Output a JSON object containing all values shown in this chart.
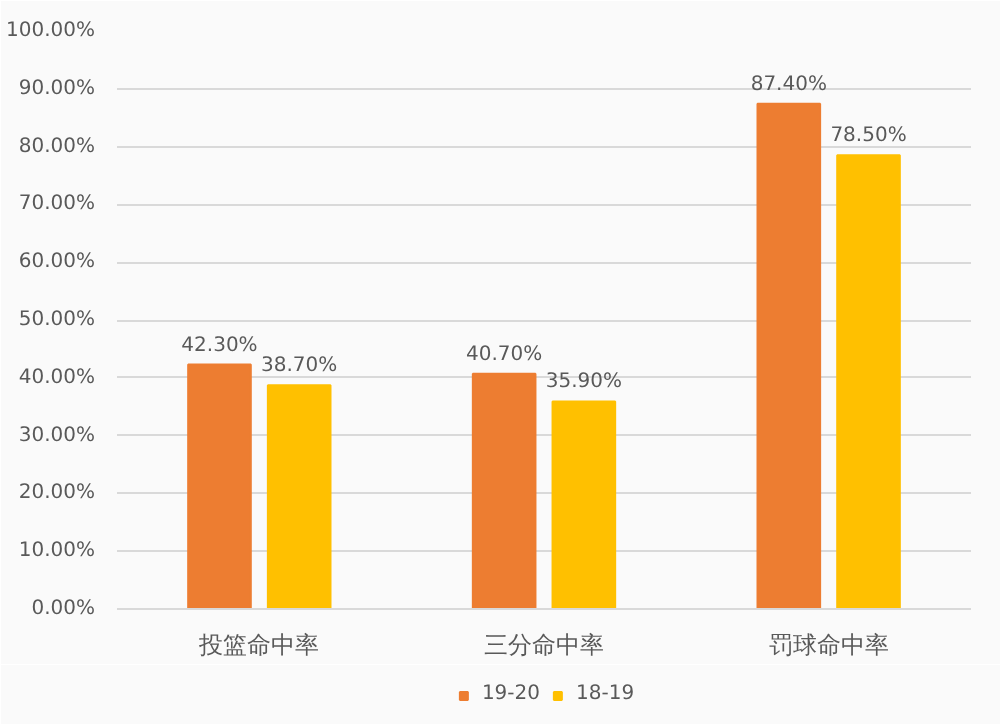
{
  "chart_data": {
    "type": "bar",
    "categories": [
      "投篮命中率",
      "三分命中率",
      "罚球命中率"
    ],
    "series": [
      {
        "name": "19-20",
        "color": "#ed7d31",
        "values": [
          42.3,
          40.7,
          87.4
        ],
        "value_labels": [
          "42.30%",
          "40.70%",
          "87.40%"
        ]
      },
      {
        "name": "18-19",
        "color": "#ffc000",
        "values": [
          38.7,
          35.9,
          78.5
        ],
        "value_labels": [
          "38.70%",
          "35.90%",
          "78.50%"
        ]
      }
    ],
    "ylim": [
      0,
      100
    ],
    "yticks": [
      {
        "value": 0,
        "label": "0.00%"
      },
      {
        "value": 10,
        "label": "10.00%"
      },
      {
        "value": 20,
        "label": "20.00%"
      },
      {
        "value": 30,
        "label": "30.00%"
      },
      {
        "value": 40,
        "label": "40.00%"
      },
      {
        "value": 50,
        "label": "50.00%"
      },
      {
        "value": 60,
        "label": "60.00%"
      },
      {
        "value": 70,
        "label": "70.00%"
      },
      {
        "value": 80,
        "label": "80.00%"
      },
      {
        "value": 90,
        "label": "90.00%"
      },
      {
        "value": 100,
        "label": "100.00%"
      }
    ],
    "grid": "y",
    "legend": "bottom"
  }
}
